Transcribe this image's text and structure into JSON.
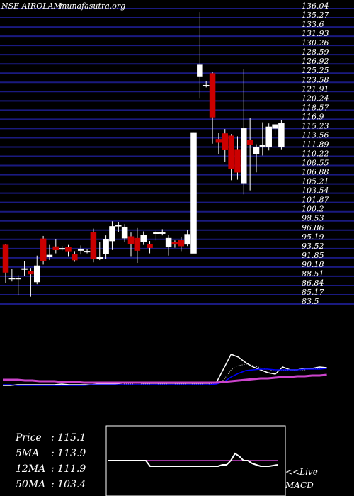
{
  "header": {
    "symbol_label": "NSE AIROLAM",
    "site_label": "munafasutra.org"
  },
  "colors": {
    "background": "#000000",
    "grid": "#1a1a80",
    "bull": "#ffffff",
    "bear": "#cc0000",
    "ma_blue": "#0000ff",
    "ma_magenta": "#cc44cc",
    "text": "#ffffff"
  },
  "price_axis_labels": [
    "136.04",
    "135.27",
    "133.6",
    "131.93",
    "130.26",
    "128.59",
    "126.92",
    "125.25",
    "123.58",
    "121.91",
    "120.24",
    "118.57",
    "116.9",
    "115.23",
    "113.56",
    "111.89",
    "110.22",
    "108.55",
    "106.88",
    "105.21",
    "103.54",
    "101.87",
    "100.2",
    "98.53",
    "96.86",
    "95.19",
    "93.52",
    "91.85",
    "90.18",
    "88.51",
    "86.84",
    "85.17",
    "83.5"
  ],
  "price_box": {
    "rows": [
      {
        "label": "Price",
        "value": ": 115.1"
      },
      {
        "label": "5MA",
        "value": ": 113.9"
      },
      {
        "label": "12MA",
        "value": ": 111.9"
      },
      {
        "label": "50MA",
        "value": ": 103.4"
      }
    ]
  },
  "macd_label": {
    "line1": "<<Live",
    "line2": "MACD"
  },
  "chart_data": {
    "type": "candlestick",
    "ylim": [
      83.5,
      136.04
    ],
    "candles": [
      {
        "o": 93.5,
        "h": 93.6,
        "l": 86.7,
        "c": 88.6
      },
      {
        "o": 87.6,
        "h": 89.2,
        "l": 87.0,
        "c": 87.6
      },
      {
        "o": 87.6,
        "h": 88.1,
        "l": 84.5,
        "c": 87.6
      },
      {
        "o": 89.3,
        "h": 90.6,
        "l": 88.0,
        "c": 89.3
      },
      {
        "o": 88.8,
        "h": 89.4,
        "l": 84.3,
        "c": 88.3
      },
      {
        "o": 86.9,
        "h": 91.6,
        "l": 86.5,
        "c": 89.8
      },
      {
        "o": 94.6,
        "h": 95.1,
        "l": 90.0,
        "c": 90.6
      },
      {
        "o": 91.4,
        "h": 93.5,
        "l": 90.8,
        "c": 91.7
      },
      {
        "o": 93.2,
        "h": 94.5,
        "l": 92.0,
        "c": 92.6
      },
      {
        "o": 92.9,
        "h": 93.3,
        "l": 92.5,
        "c": 92.9
      },
      {
        "o": 93.1,
        "h": 93.5,
        "l": 91.5,
        "c": 92.4
      },
      {
        "o": 91.9,
        "h": 92.4,
        "l": 90.5,
        "c": 90.8
      },
      {
        "o": 92.5,
        "h": 93.4,
        "l": 91.8,
        "c": 92.8
      },
      {
        "o": 92.4,
        "h": 92.7,
        "l": 92.0,
        "c": 92.4
      },
      {
        "o": 95.7,
        "h": 96.4,
        "l": 90.4,
        "c": 91.0
      },
      {
        "o": 91.0,
        "h": 94.0,
        "l": 90.8,
        "c": 91.3
      },
      {
        "o": 91.9,
        "h": 95.2,
        "l": 91.0,
        "c": 94.5
      },
      {
        "o": 94.2,
        "h": 97.7,
        "l": 92.6,
        "c": 96.8
      },
      {
        "o": 97.0,
        "h": 97.6,
        "l": 95.8,
        "c": 97.0
      },
      {
        "o": 94.7,
        "h": 97.2,
        "l": 94.0,
        "c": 96.7
      },
      {
        "o": 95.0,
        "h": 95.7,
        "l": 91.5,
        "c": 93.7
      },
      {
        "o": 94.7,
        "h": 96.5,
        "l": 90.3,
        "c": 92.5
      },
      {
        "o": 94.0,
        "h": 95.9,
        "l": 93.5,
        "c": 95.3
      },
      {
        "o": 93.6,
        "h": 94.2,
        "l": 92.0,
        "c": 93.0
      },
      {
        "o": 95.5,
        "h": 96.0,
        "l": 94.3,
        "c": 95.7
      },
      {
        "o": 95.7,
        "h": 96.3,
        "l": 95.2,
        "c": 95.7
      },
      {
        "o": 93.1,
        "h": 95.3,
        "l": 91.6,
        "c": 94.7
      },
      {
        "o": 94.0,
        "h": 94.3,
        "l": 93.0,
        "c": 93.6
      },
      {
        "o": 94.3,
        "h": 94.9,
        "l": 92.4,
        "c": 93.3
      },
      {
        "o": 93.6,
        "h": 96.1,
        "l": 93.3,
        "c": 95.4
      },
      {
        "o": 92.0,
        "h": 113.5,
        "l": 92.0,
        "c": 113.5
      },
      {
        "o": 123.5,
        "h": 134.9,
        "l": 119.5,
        "c": 125.5
      },
      {
        "o": 121.9,
        "h": 122.6,
        "l": 121.5,
        "c": 121.9
      },
      {
        "o": 124.0,
        "h": 124.3,
        "l": 111.5,
        "c": 116.2
      },
      {
        "o": 112.3,
        "h": 113.4,
        "l": 109.6,
        "c": 111.7
      },
      {
        "o": 113.3,
        "h": 114.1,
        "l": 108.3,
        "c": 110.5
      },
      {
        "o": 112.9,
        "h": 113.2,
        "l": 105.0,
        "c": 107.1
      },
      {
        "o": 110.5,
        "h": 112.8,
        "l": 105.1,
        "c": 106.4
      },
      {
        "o": 104.5,
        "h": 124.8,
        "l": 102.5,
        "c": 114.2
      },
      {
        "o": 112.1,
        "h": 116.1,
        "l": 103.2,
        "c": 111.3
      },
      {
        "o": 109.7,
        "h": 111.4,
        "l": 106.4,
        "c": 110.9
      },
      {
        "o": 111.1,
        "h": 115.3,
        "l": 109.4,
        "c": 111.2
      },
      {
        "o": 110.9,
        "h": 115.1,
        "l": 110.3,
        "c": 114.5
      },
      {
        "o": 114.2,
        "h": 115.0,
        "l": 113.1,
        "c": 114.9
      },
      {
        "o": 110.9,
        "h": 115.7,
        "l": 110.5,
        "c": 115.1
      }
    ],
    "indicator_series": [
      {
        "id": "price_line",
        "color": "#ffffff",
        "width": 1.5,
        "values": [
          56,
          56,
          57,
          57,
          57,
          57,
          57,
          57,
          58,
          57,
          57,
          57,
          57,
          58,
          58,
          58,
          59,
          60,
          60,
          59,
          59,
          59,
          59,
          59,
          59,
          59,
          59,
          59,
          59,
          60,
          80,
          100,
          96,
          88,
          82,
          78,
          74,
          72,
          82,
          78,
          78,
          80,
          80,
          82,
          81
        ]
      },
      {
        "id": "ma_short",
        "color": "#ffffff",
        "width": 0.8,
        "dash": true,
        "values": [
          56,
          56,
          56,
          56,
          56,
          56,
          56,
          56,
          57,
          57,
          57,
          57,
          57,
          57,
          57,
          57,
          58,
          58,
          58,
          58,
          58,
          58,
          58,
          58,
          58,
          58,
          58,
          58,
          58,
          58,
          64,
          78,
          84,
          86,
          84,
          81,
          79,
          76,
          77,
          77,
          78,
          78,
          79,
          80,
          80
        ]
      },
      {
        "id": "ma_long",
        "color": "#0000ff",
        "width": 1.5,
        "values": [
          57,
          57,
          56,
          56,
          56,
          56,
          56,
          56,
          56,
          56,
          56,
          56,
          57,
          57,
          57,
          57,
          57,
          57,
          57,
          57,
          57,
          57,
          57,
          57,
          57,
          57,
          57,
          57,
          57,
          58,
          61,
          68,
          73,
          77,
          78,
          79,
          79,
          78,
          78,
          78,
          78,
          79,
          79,
          79,
          80
        ]
      },
      {
        "id": "ma_slow",
        "color": "#cc44cc",
        "width": 3,
        "values": [
          64,
          64,
          64,
          63,
          63,
          62,
          62,
          62,
          61,
          61,
          61,
          60,
          60,
          60,
          60,
          60,
          60,
          60,
          60,
          60,
          60,
          60,
          60,
          60,
          60,
          60,
          60,
          60,
          60,
          60,
          61,
          62,
          63,
          64,
          65,
          66,
          66,
          67,
          68,
          68,
          69,
          69,
          70,
          70,
          71
        ]
      }
    ],
    "macd_inset": {
      "white_line": [
        50,
        50,
        50,
        50,
        50,
        50,
        50,
        50,
        50,
        50,
        42,
        42,
        42,
        42,
        42,
        42,
        42,
        42,
        42,
        42,
        42,
        42,
        42,
        42,
        42,
        42,
        42,
        44,
        44,
        50,
        60,
        56,
        50,
        50,
        46,
        44,
        42,
        42,
        42,
        43,
        44
      ],
      "magenta_line": [
        50,
        50,
        50,
        50,
        50,
        50,
        50,
        50,
        50,
        50,
        50,
        50,
        50,
        50,
        50,
        50,
        50,
        50,
        50,
        50,
        50,
        50,
        50,
        50,
        50,
        50,
        50,
        50,
        50,
        50,
        50,
        50,
        50,
        50,
        50,
        50,
        50,
        50,
        50,
        50,
        50
      ]
    }
  }
}
